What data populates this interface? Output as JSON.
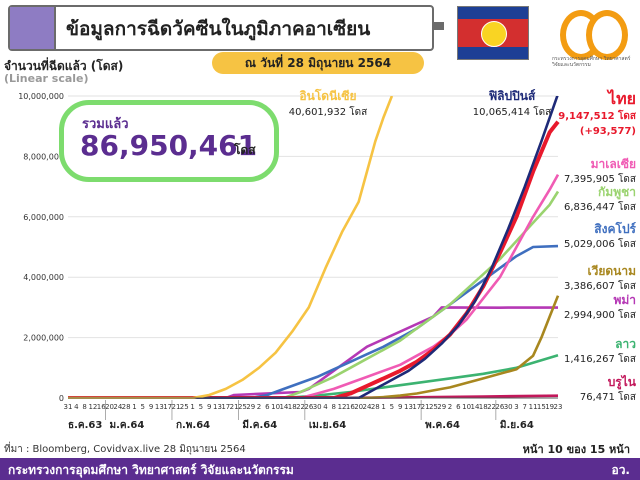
{
  "header": {
    "title": "ข้อมูลการฉีดวัคซีนในภูมิภาคอาเซียน",
    "date_label": "ณ วันที่ 28 มิถุนายน 2564",
    "logo_text": "กระทรวงการอุดมศึกษา วิทยาศาสตร์ วิจัยและนวัตกรรม"
  },
  "y_title": "จำนวนที่ฉีดแล้ว (โดส)",
  "y_subtitle": "(Linear scale)",
  "total": {
    "label": "รวมแล้ว",
    "value": "86,950,461",
    "unit": "โดส"
  },
  "source": "ที่มา : Bloomberg, Covidvax.live 28 มิถุนายน 2564",
  "page_label": "หน้า 10 ของ 15 หน้า",
  "footer": {
    "ministry": "กระทรวงการอุดมศึกษา วิทยาศาสตร์ วิจัยและนวัตกรรม",
    "abbr": "อว."
  },
  "colors": {
    "accent": "#5b2d90",
    "highlight": "#7ddc6e",
    "pill": "#f6c343"
  },
  "chart_data": {
    "type": "line",
    "ylim": [
      0,
      10000000
    ],
    "yticks": [
      0,
      2000000,
      4000000,
      6000000,
      8000000,
      10000000
    ],
    "ytick_labels": [
      "0",
      "2,000,000",
      "4,000,000",
      "6,000,000",
      "8,000,000",
      "10,000,000"
    ],
    "x_count": 60,
    "x_day_labels": [
      "31",
      "4",
      "8",
      "12",
      "16",
      "20",
      "24",
      "28",
      "1",
      "5",
      "9",
      "13",
      "17",
      "21",
      "25",
      "1",
      "5",
      "9",
      "13",
      "17",
      "21",
      "25",
      "29",
      "2",
      "6",
      "10",
      "14",
      "18",
      "22",
      "26",
      "30",
      "4",
      "8",
      "12",
      "16",
      "20",
      "24",
      "28",
      "1",
      "5",
      "9",
      "13",
      "17",
      "21",
      "25",
      "29",
      "2",
      "6",
      "10",
      "14",
      "18",
      "22",
      "26",
      "30",
      "3",
      "7",
      "11",
      "15",
      "19",
      "23"
    ],
    "month_labels": [
      {
        "label": "ธ.ค.63",
        "i": 0
      },
      {
        "label": "ม.ค.64",
        "i": 5
      },
      {
        "label": "ก.พ.64",
        "i": 13
      },
      {
        "label": "มี.ค.64",
        "i": 21
      },
      {
        "label": "เม.ย.64",
        "i": 29
      },
      {
        "label": "พ.ค.64",
        "i": 43
      },
      {
        "label": "มิ.ย.64",
        "i": 52
      }
    ],
    "series": [
      {
        "name": "อินโดนีเซีย",
        "label": "40,601,932 โดส",
        "color": "#f6c343",
        "bold": false,
        "x": [
          0,
          15,
          17,
          19,
          21,
          23,
          25,
          27,
          29,
          31,
          33,
          35,
          36,
          37,
          38,
          39
        ],
        "y": [
          0,
          0,
          100000,
          300000,
          600000,
          1000000,
          1500000,
          2200000,
          3000000,
          4300000,
          5500000,
          6500000,
          7500000,
          8500000,
          9300000,
          10000000
        ]
      },
      {
        "name": "ฟิลิปปินส์",
        "label": "10,065,414 โดส",
        "color": "#1e2a78",
        "bold": false,
        "x": [
          0,
          35,
          37,
          39,
          41,
          43,
          45,
          47,
          49,
          51,
          53,
          55,
          57,
          59
        ],
        "y": [
          0,
          0,
          300000,
          600000,
          900000,
          1300000,
          1800000,
          2400000,
          3200000,
          4300000,
          5600000,
          7000000,
          8500000,
          10065414
        ]
      },
      {
        "name": "ไทย",
        "label": "9,147,512 โดส",
        "label2": "(+93,577)",
        "color": "#e8192c",
        "bold": true,
        "x": [
          0,
          32,
          34,
          36,
          38,
          40,
          42,
          44,
          46,
          48,
          50,
          52,
          54,
          56,
          58,
          59
        ],
        "y": [
          0,
          0,
          150000,
          400000,
          650000,
          900000,
          1200000,
          1600000,
          2100000,
          2800000,
          3700000,
          4800000,
          6000000,
          7500000,
          8800000,
          9147512
        ]
      },
      {
        "name": "มาเลเซีย",
        "label": "7,395,905 โดส",
        "color": "#f05bb4",
        "bold": false,
        "x": [
          0,
          28,
          30,
          32,
          34,
          36,
          38,
          40,
          42,
          44,
          46,
          48,
          50,
          52,
          54,
          56,
          58,
          59
        ],
        "y": [
          0,
          0,
          150000,
          300000,
          500000,
          700000,
          900000,
          1100000,
          1400000,
          1700000,
          2100000,
          2600000,
          3300000,
          4000000,
          5000000,
          6000000,
          6900000,
          7395905
        ]
      },
      {
        "name": "กัมพูชา",
        "label": "6,836,447 โดส",
        "color": "#9ad36f",
        "bold": false,
        "x": [
          0,
          26,
          28,
          30,
          32,
          34,
          36,
          38,
          40,
          42,
          44,
          46,
          48,
          50,
          52,
          54,
          56,
          58,
          59
        ],
        "y": [
          0,
          0,
          200000,
          450000,
          700000,
          1000000,
          1300000,
          1600000,
          1900000,
          2300000,
          2700000,
          3100000,
          3600000,
          4100000,
          4600000,
          5200000,
          5800000,
          6400000,
          6836447
        ]
      },
      {
        "name": "สิงคโปร์",
        "label": "5,029,006 โดส",
        "color": "#3f6fbf",
        "bold": false,
        "x": [
          0,
          22,
          24,
          26,
          28,
          30,
          32,
          34,
          36,
          38,
          40,
          42,
          44,
          46,
          48,
          50,
          52,
          54,
          56,
          59
        ],
        "y": [
          0,
          0,
          100000,
          300000,
          500000,
          700000,
          950000,
          1200000,
          1450000,
          1700000,
          2000000,
          2300000,
          2700000,
          3100000,
          3500000,
          3900000,
          4300000,
          4700000,
          5000000,
          5029006
        ]
      },
      {
        "name": "เวียดนาม",
        "label": "3,386,607 โดส",
        "color": "#a8871f",
        "bold": false,
        "x": [
          0,
          36,
          38,
          40,
          42,
          44,
          46,
          48,
          50,
          52,
          54,
          56,
          57,
          58,
          59
        ],
        "y": [
          0,
          0,
          30000,
          80000,
          150000,
          250000,
          350000,
          500000,
          650000,
          800000,
          950000,
          1400000,
          2000000,
          2700000,
          3386607
        ]
      },
      {
        "name": "พม่า",
        "label": "2,994,900 โดส",
        "color": "#b538b5",
        "bold": false,
        "x": [
          0,
          19,
          20,
          28,
          29,
          35,
          36,
          44,
          45,
          52,
          53,
          59
        ],
        "y": [
          0,
          0,
          100000,
          200000,
          300000,
          1500000,
          1700000,
          2700000,
          3000000,
          2990000,
          2994900,
          2994900
        ]
      },
      {
        "name": "ลาว",
        "label": "1,416,267 โดส",
        "color": "#3cb371",
        "bold": false,
        "x": [
          0,
          26,
          30,
          34,
          38,
          42,
          46,
          50,
          54,
          57,
          59
        ],
        "y": [
          0,
          0,
          80000,
          200000,
          350000,
          500000,
          650000,
          800000,
          1000000,
          1250000,
          1416267
        ]
      },
      {
        "name": "บรูไน",
        "label": "76,471 โดส",
        "color": "#c2185b",
        "bold": false,
        "x": [
          0,
          30,
          40,
          50,
          59
        ],
        "y": [
          0,
          0,
          20000,
          50000,
          76471
        ]
      }
    ]
  }
}
